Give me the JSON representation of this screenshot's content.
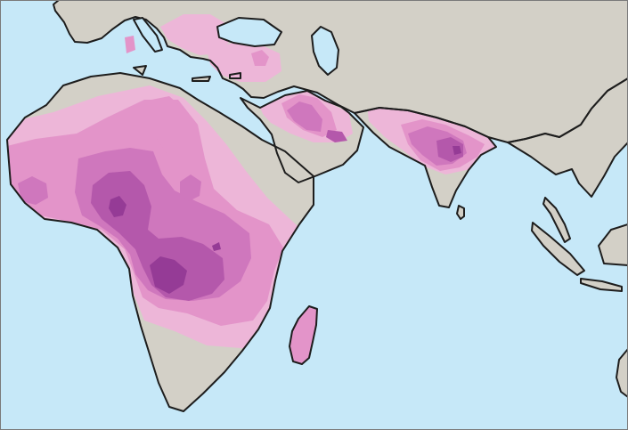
{
  "map": {
    "colors": {
      "ocean": "#c6e8f8",
      "land": "#d3d0c7",
      "coast": "#1d1d1d",
      "frame": "#7a7a7a",
      "density_levels": [
        "#edb6d8",
        "#e394c9",
        "#cf77bd",
        "#b458ab",
        "#953b96"
      ]
    },
    "density_scale_levels": 5
  }
}
